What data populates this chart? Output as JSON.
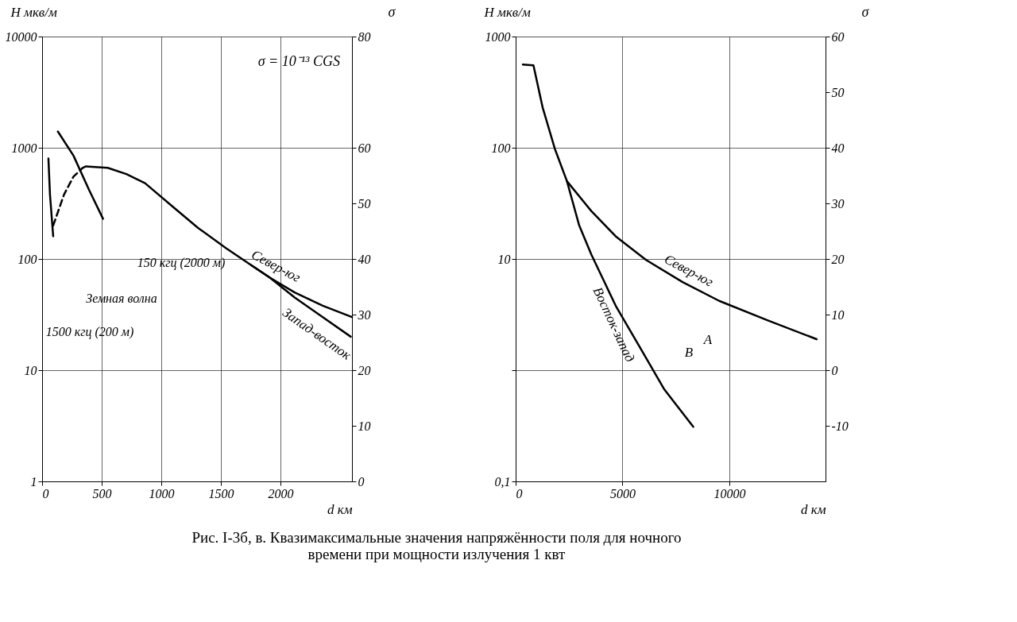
{
  "chart_data": [
    {
      "type": "line",
      "xlabel": "d км",
      "ylabel": "H мкв/м",
      "y2label": "σ",
      "log": "y",
      "grid": true,
      "marker": "none",
      "xlim": [
        0,
        2600
      ],
      "xticks": [
        0,
        500,
        1000,
        1500,
        2000
      ],
      "ylim": [
        1,
        10000
      ],
      "yticks": [
        10000,
        1000,
        100,
        10,
        1
      ],
      "y2lim": [
        0,
        80
      ],
      "y2ticks": [
        80,
        60,
        50,
        40,
        30,
        20,
        10,
        0
      ],
      "series": [
        {
          "name": "Север-юг",
          "color": "#000000",
          "line_style": "solid",
          "x": [
            367,
            550,
            707,
            864,
            1073,
            1309,
            1544,
            1754,
            1911,
            2119,
            2355,
            2600
          ],
          "values": [
            680,
            660,
            580,
            480,
            310,
            190,
            125,
            88,
            68,
            50,
            38,
            30
          ]
        },
        {
          "name": "Запад-восток",
          "color": "#000000",
          "line_style": "solid",
          "x": [
            1754,
            1911,
            2119,
            2355,
            2590
          ],
          "values": [
            88,
            68,
            45,
            30,
            20
          ]
        },
        {
          "color": "#000000",
          "line_style": "dashed",
          "x": [
            93,
            184,
            263,
            341,
            367
          ],
          "values": [
            200,
            380,
            550,
            660,
            680
          ]
        },
        {
          "color": "#000000",
          "line_style": "solid",
          "x": [
            132,
            263,
            393,
            511
          ],
          "values": [
            1400,
            850,
            420,
            230
          ]
        },
        {
          "color": "#000000",
          "line_style": "solid",
          "x": [
            53,
            66,
            93
          ],
          "values": [
            800,
            380,
            160
          ]
        }
      ],
      "annotations": [
        "σ = 10⁻¹³ CGS",
        "150 кгц (2000 м)",
        "Земная волна",
        "1500 кгц (200 м)"
      ]
    },
    {
      "type": "line",
      "xlabel": "d км",
      "ylabel": "H мкв/м",
      "y2label": "σ",
      "log": "y",
      "grid": true,
      "marker": "none",
      "xlim": [
        0,
        14500
      ],
      "xticks": [
        0,
        5000,
        10000
      ],
      "ylim": [
        0.1,
        1000
      ],
      "yticks": [
        1000,
        100,
        10,
        {
          "value": 1,
          "label": null
        },
        {
          "value": 0.1,
          "label": "0,1"
        }
      ],
      "y2lim": [
        -20,
        60
      ],
      "y2ticks": [
        60,
        50,
        40,
        30,
        20,
        10,
        0,
        -10
      ],
      "series": [
        {
          "name": "Север-юг",
          "color": "#000000",
          "line_style": "solid",
          "x": [
            335,
            833,
            1264,
            1833,
            2401,
            3539,
            4680,
            6104,
            7814,
            9524,
            11803,
            14082
          ],
          "values": [
            560,
            550,
            230,
            98,
            50,
            27,
            16,
            9.8,
            6.2,
            4.2,
            2.8,
            1.9
          ]
        },
        {
          "name": "Восток-запад",
          "color": "#000000",
          "line_style": "solid",
          "x": [
            2401,
            2974,
            3539,
            4680,
            5818,
            6959,
            8312
          ],
          "values": [
            50,
            20,
            11,
            3.8,
            1.6,
            0.67,
            0.31
          ]
        }
      ],
      "annotations": [
        "А",
        "В",
        "Рис. I-3б, в. Квазимаксимальные значения напряжённости поля для ночного времени при мощности излучения 1 квт"
      ]
    }
  ]
}
